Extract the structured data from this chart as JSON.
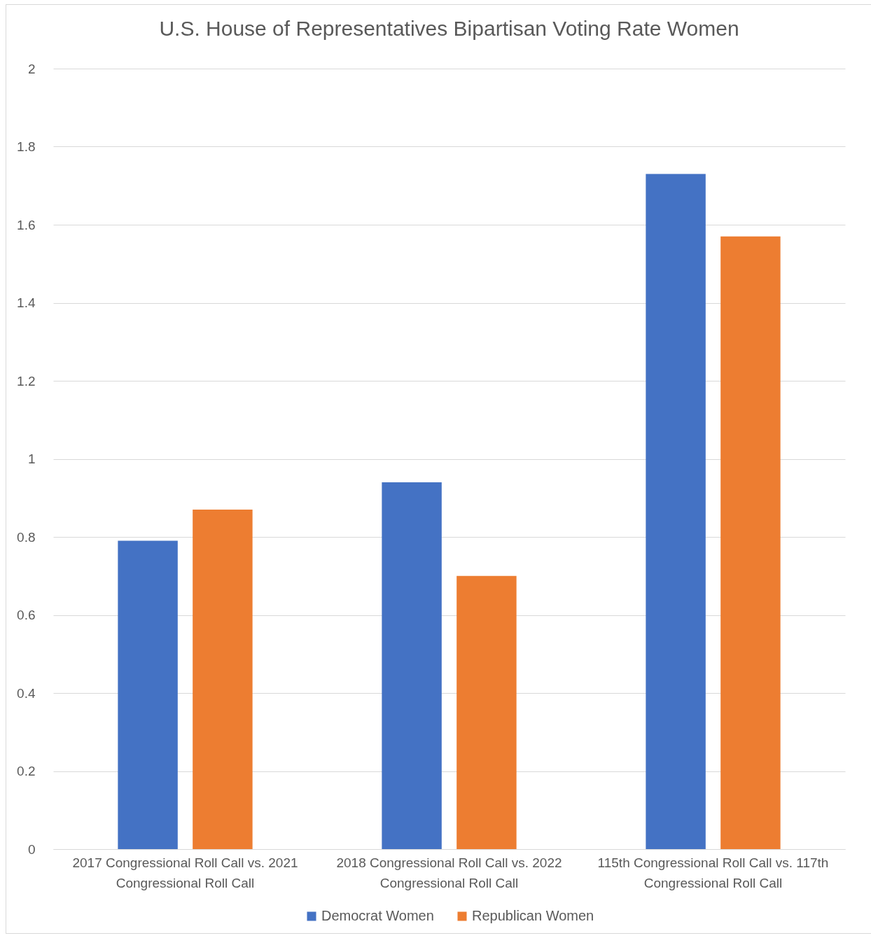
{
  "chart_data": {
    "type": "bar",
    "title": "U.S. House of Representatives Bipartisan Voting Rate Women",
    "categories": [
      "2017 Congressional Roll Call vs. 2021 Congressional Roll Call",
      "2018 Congressional Roll Call vs. 2022 Congressional Roll Call",
      "115th Congressional Roll Call vs. 117th Congressional Roll Call"
    ],
    "series": [
      {
        "name": "Democrat Women",
        "color": "#4472c4",
        "values": [
          0.79,
          0.94,
          1.73
        ]
      },
      {
        "name": "Republican Women",
        "color": "#ed7d31",
        "values": [
          0.87,
          0.7,
          1.57
        ]
      }
    ],
    "ylim": [
      0,
      2
    ],
    "yticks": [
      0,
      0.2,
      0.4,
      0.6,
      0.8,
      1,
      1.2,
      1.4,
      1.6,
      1.8,
      2
    ],
    "grid": "y",
    "legend": "bottom"
  }
}
